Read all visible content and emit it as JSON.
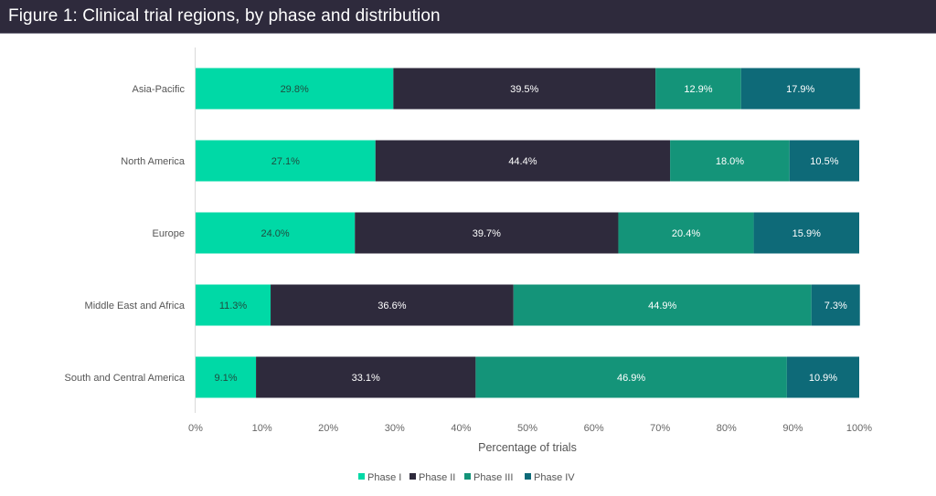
{
  "header": {
    "title": "Figure 1: Clinical trial regions, by phase and distribution"
  },
  "chart_data": {
    "type": "bar",
    "orientation": "horizontal",
    "stacked": true,
    "percent_stacked": true,
    "title": "Figure 1: Clinical trial regions, by phase and distribution",
    "xlabel": "Percentage of trials",
    "ylabel": "",
    "xlim": [
      0,
      100
    ],
    "x_ticks": [
      0,
      10,
      20,
      30,
      40,
      50,
      60,
      70,
      80,
      90,
      100
    ],
    "x_tick_labels": [
      "0%",
      "10%",
      "20%",
      "30%",
      "40%",
      "50%",
      "60%",
      "70%",
      "80%",
      "90%",
      "100%"
    ],
    "grid": false,
    "legend_position": "bottom",
    "categories": [
      "Asia-Pacific",
      "North America",
      "Europe",
      "Middle East and Africa",
      "South and Central America"
    ],
    "series": [
      {
        "name": "Phase I",
        "color": "#00d9a6",
        "label_color": "#1f4d40",
        "values": [
          29.8,
          27.1,
          24.0,
          11.3,
          9.1
        ]
      },
      {
        "name": "Phase II",
        "color": "#2e2a3c",
        "label_color": "#ffffff",
        "values": [
          39.5,
          44.4,
          39.7,
          36.6,
          33.1
        ]
      },
      {
        "name": "Phase III",
        "color": "#149479",
        "label_color": "#ffffff",
        "values": [
          12.9,
          18.0,
          20.4,
          44.9,
          46.9
        ]
      },
      {
        "name": "Phase IV",
        "color": "#0e6a78",
        "label_color": "#ffffff",
        "values": [
          17.9,
          10.5,
          15.9,
          7.3,
          10.9
        ]
      }
    ],
    "data_labels": [
      [
        "29.8%",
        "27.1%",
        "24.0%",
        "11.3%",
        "9.1%"
      ],
      [
        "39.5%",
        "44.4%",
        "39.7%",
        "36.6%",
        "33.1%"
      ],
      [
        "12.9%",
        "18.0%",
        "20.4%",
        "44.9%",
        "46.9%"
      ],
      [
        "17.9%",
        "10.5%",
        "15.9%",
        "7.3%",
        "10.9%"
      ]
    ]
  }
}
